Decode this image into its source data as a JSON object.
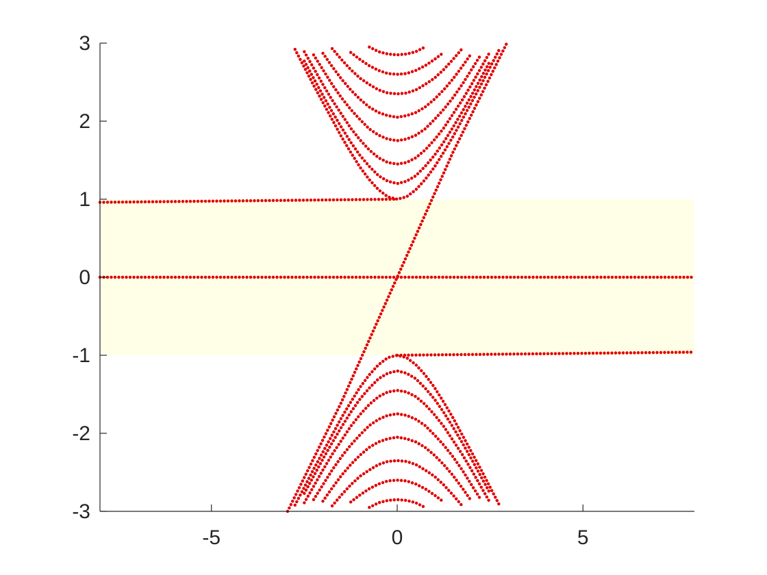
{
  "chart_data": {
    "type": "line",
    "marker": "dotted",
    "color": "#e00000",
    "xlim": [
      -8,
      8
    ],
    "ylim": [
      -3,
      3
    ],
    "xticks": [
      -5,
      0,
      5
    ],
    "yticks": [
      -3,
      -2,
      -1,
      0,
      1,
      2,
      3
    ],
    "grid": false,
    "shaded_region": {
      "ylim": [
        -1,
        1
      ],
      "color": "#ffffe8"
    },
    "x": [
      -3,
      -2.75,
      -2.5,
      -2.25,
      -2,
      -1.75,
      -1.5,
      -1.25,
      -1,
      -0.75,
      -0.5,
      -0.25,
      0,
      0.25,
      0.5,
      0.75,
      1,
      1.25,
      1.5,
      1.75,
      2,
      2.25,
      2.5,
      2.75,
      3
    ],
    "series": [
      {
        "x": [
          -8,
          8
        ],
        "values": [
          0,
          0
        ]
      },
      {
        "x": [
          -8,
          0
        ],
        "values": [
          0.96,
          1
        ]
      },
      {
        "x": [
          0,
          8
        ],
        "values": [
          -1,
          -0.96
        ]
      },
      {
        "x": [
          -2.95,
          -1.5,
          0,
          1.5,
          2.95
        ],
        "values": [
          -3,
          -1.6,
          0,
          1.6,
          3
        ]
      },
      {
        "values": [
          null,
          2.92,
          2.69,
          2.46,
          2.24,
          2.02,
          1.8,
          1.6,
          1.41,
          1.25,
          1.12,
          1.03,
          1,
          1.03,
          1.12,
          1.25,
          1.41,
          1.6,
          1.8,
          2.02,
          2.24,
          2.46,
          2.69,
          2.92,
          null
        ]
      },
      {
        "values": [
          null,
          null,
          2.77,
          2.55,
          2.33,
          2.12,
          1.92,
          1.73,
          1.56,
          1.42,
          1.3,
          1.23,
          1.2,
          1.23,
          1.3,
          1.42,
          1.56,
          1.73,
          1.92,
          2.12,
          2.33,
          2.55,
          2.77,
          null,
          null
        ]
      },
      {
        "values": [
          null,
          null,
          2.89,
          2.68,
          2.47,
          2.27,
          2.09,
          1.91,
          1.76,
          1.63,
          1.53,
          1.47,
          1.45,
          1.47,
          1.53,
          1.63,
          1.76,
          1.91,
          2.09,
          2.27,
          2.47,
          2.68,
          2.89,
          null,
          null
        ]
      },
      {
        "values": [
          null,
          null,
          null,
          2.85,
          2.66,
          2.47,
          2.3,
          2.15,
          2.02,
          1.9,
          1.82,
          1.77,
          1.75,
          1.77,
          1.82,
          1.9,
          2.02,
          2.15,
          2.3,
          2.47,
          2.66,
          2.85,
          null,
          null,
          null
        ]
      },
      {
        "values": [
          null,
          null,
          null,
          null,
          2.87,
          2.7,
          2.54,
          2.4,
          2.28,
          2.18,
          2.11,
          2.07,
          2.05,
          2.07,
          2.11,
          2.18,
          2.28,
          2.4,
          2.54,
          2.7,
          2.87,
          null,
          null,
          null,
          null
        ]
      },
      {
        "values": [
          null,
          null,
          null,
          null,
          null,
          2.93,
          2.79,
          2.66,
          2.55,
          2.47,
          2.4,
          2.36,
          2.35,
          2.36,
          2.4,
          2.47,
          2.55,
          2.66,
          2.79,
          2.93,
          null,
          null,
          null,
          null,
          null
        ]
      },
      {
        "values": [
          null,
          null,
          null,
          null,
          null,
          null,
          null,
          2.88,
          2.79,
          2.71,
          2.65,
          2.61,
          2.6,
          2.61,
          2.65,
          2.71,
          2.79,
          2.88,
          null,
          null,
          null,
          null,
          null,
          null,
          null
        ]
      },
      {
        "values": [
          null,
          null,
          null,
          null,
          null,
          null,
          null,
          null,
          null,
          2.95,
          2.89,
          2.86,
          2.85,
          2.86,
          2.89,
          2.95,
          null,
          null,
          null,
          null,
          null,
          null,
          null,
          null,
          null
        ]
      },
      {
        "values": [
          null,
          -2.92,
          -2.69,
          -2.46,
          -2.24,
          -2.02,
          -1.8,
          -1.6,
          -1.41,
          -1.25,
          -1.12,
          -1.03,
          -1,
          -1.03,
          -1.12,
          -1.25,
          -1.41,
          -1.6,
          -1.8,
          -2.02,
          -2.24,
          -2.46,
          -2.69,
          -2.92,
          null
        ]
      },
      {
        "values": [
          null,
          null,
          -2.77,
          -2.55,
          -2.33,
          -2.12,
          -1.92,
          -1.73,
          -1.56,
          -1.42,
          -1.3,
          -1.23,
          -1.2,
          -1.23,
          -1.3,
          -1.42,
          -1.56,
          -1.73,
          -1.92,
          -2.12,
          -2.33,
          -2.55,
          -2.77,
          null,
          null
        ]
      },
      {
        "values": [
          null,
          null,
          -2.89,
          -2.68,
          -2.47,
          -2.27,
          -2.09,
          -1.91,
          -1.76,
          -1.63,
          -1.53,
          -1.47,
          -1.45,
          -1.47,
          -1.53,
          -1.63,
          -1.76,
          -1.91,
          -2.09,
          -2.27,
          -2.47,
          -2.68,
          -2.89,
          null,
          null
        ]
      },
      {
        "values": [
          null,
          null,
          null,
          -2.85,
          -2.66,
          -2.47,
          -2.3,
          -2.15,
          -2.02,
          -1.9,
          -1.82,
          -1.77,
          -1.75,
          -1.77,
          -1.82,
          -1.9,
          -2.02,
          -2.15,
          -2.3,
          -2.47,
          -2.66,
          -2.85,
          null,
          null,
          null
        ]
      },
      {
        "values": [
          null,
          null,
          null,
          null,
          -2.87,
          -2.7,
          -2.54,
          -2.4,
          -2.28,
          -2.18,
          -2.11,
          -2.07,
          -2.05,
          -2.07,
          -2.11,
          -2.18,
          -2.28,
          -2.4,
          -2.54,
          -2.7,
          -2.87,
          null,
          null,
          null,
          null
        ]
      },
      {
        "values": [
          null,
          null,
          null,
          null,
          null,
          -2.93,
          -2.79,
          -2.66,
          -2.55,
          -2.47,
          -2.4,
          -2.36,
          -2.35,
          -2.36,
          -2.4,
          -2.47,
          -2.55,
          -2.66,
          -2.79,
          -2.93,
          null,
          null,
          null,
          null,
          null
        ]
      },
      {
        "values": [
          null,
          null,
          null,
          null,
          null,
          null,
          null,
          -2.88,
          -2.79,
          -2.71,
          -2.65,
          -2.61,
          -2.6,
          -2.61,
          -2.65,
          -2.71,
          -2.79,
          -2.88,
          null,
          null,
          null,
          null,
          null,
          null,
          null
        ]
      },
      {
        "values": [
          null,
          null,
          null,
          null,
          null,
          null,
          null,
          null,
          null,
          -2.95,
          -2.89,
          -2.86,
          -2.85,
          -2.86,
          -2.89,
          -2.95,
          null,
          null,
          null,
          null,
          null,
          null,
          null,
          null,
          null
        ]
      }
    ]
  }
}
